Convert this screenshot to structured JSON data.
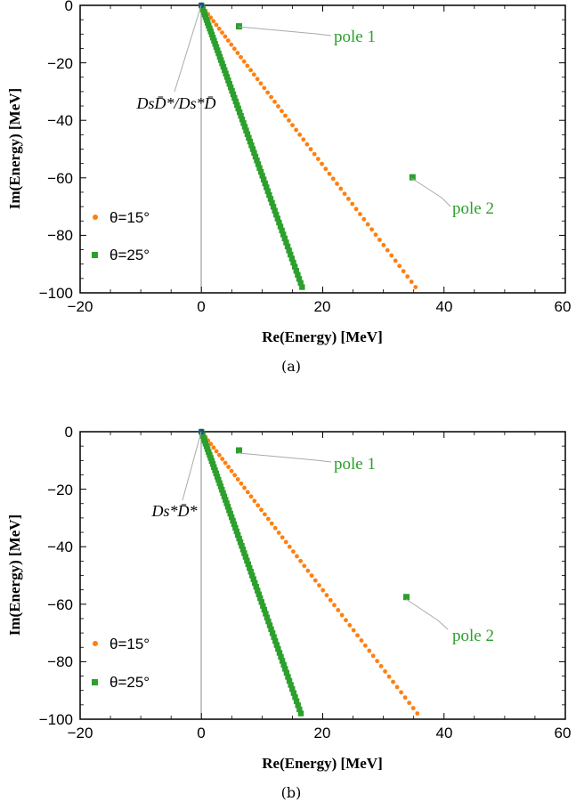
{
  "colors": {
    "orange": "#ff7f0e",
    "green": "#2ca02c",
    "axis_line": "#888888",
    "annotation": "#2ca02c"
  },
  "chart_data": [
    {
      "type": "scatter",
      "caption": "(a)",
      "xlabel": "Re(Energy) [MeV]",
      "ylabel": "Im(Energy) [MeV]",
      "xlim": [
        -20,
        60
      ],
      "ylim": [
        -100,
        0
      ],
      "x_ticks": [
        "−20",
        "0",
        "20",
        "40",
        "60"
      ],
      "y_ticks": [
        "0",
        "−20",
        "−40",
        "−60",
        "−80",
        "−100"
      ],
      "legend_position": "bottom-left",
      "threshold": {
        "label": "DsD̄*/Ds*D̄",
        "x": 0,
        "y": 0
      },
      "series": [
        {
          "name": "θ=15°",
          "marker": "circle",
          "color": "#ff7f0e",
          "line_from": [
            0,
            0
          ],
          "line_to": [
            35.3,
            -98
          ],
          "n_points": 62
        },
        {
          "name": "θ=25°",
          "marker": "square",
          "color": "#2ca02c",
          "line_from": [
            0,
            0
          ],
          "line_to": [
            16.6,
            -98
          ],
          "n_points": 80
        }
      ],
      "poles": [
        {
          "label": "pole 1",
          "x": 6.2,
          "y": -7.3
        },
        {
          "label": "pole 2",
          "x": 34.8,
          "y": -59.8
        }
      ]
    },
    {
      "type": "scatter",
      "caption": "(b)",
      "xlabel": "Re(Energy) [MeV]",
      "ylabel": "Im(Energy) [MeV]",
      "xlim": [
        -20,
        60
      ],
      "ylim": [
        -100,
        0
      ],
      "x_ticks": [
        "−20",
        "0",
        "20",
        "40",
        "60"
      ],
      "y_ticks": [
        "0",
        "−20",
        "−40",
        "−60",
        "−80",
        "−100"
      ],
      "legend_position": "bottom-left",
      "threshold": {
        "label": "Ds*D̄*",
        "x": 0,
        "y": 0
      },
      "series": [
        {
          "name": "θ=15°",
          "marker": "circle",
          "color": "#ff7f0e",
          "line_from": [
            0,
            0
          ],
          "line_to": [
            35.6,
            -98
          ],
          "n_points": 62
        },
        {
          "name": "θ=25°",
          "marker": "square",
          "color": "#2ca02c",
          "line_from": [
            0,
            0
          ],
          "line_to": [
            16.4,
            -98
          ],
          "n_points": 80
        }
      ],
      "poles": [
        {
          "label": "pole 1",
          "x": 6.2,
          "y": -6.5
        },
        {
          "label": "pole 2",
          "x": 33.8,
          "y": -57.5
        }
      ]
    }
  ]
}
